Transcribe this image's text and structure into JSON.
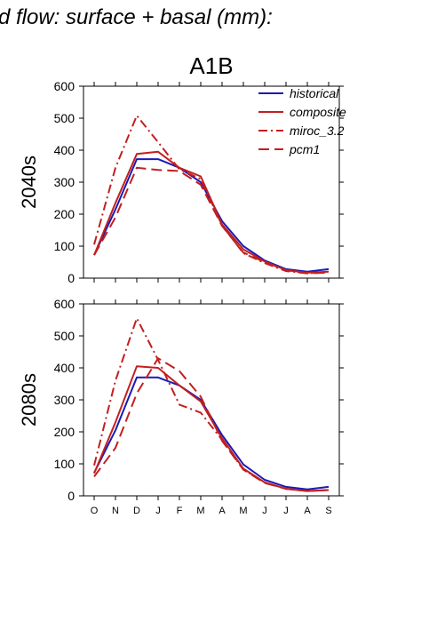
{
  "title": "d flow: surface + basal (mm):",
  "panel_title": "A1B",
  "colors": {
    "historical": "#1a1ab8",
    "composite": "#c21f1f",
    "miroc_3.2": "#c21f1f",
    "pcm1": "#c21f1f"
  },
  "chart_data": [
    {
      "type": "line",
      "row_label": "2040s",
      "categories": [
        "O",
        "N",
        "D",
        "J",
        "F",
        "M",
        "A",
        "M",
        "J",
        "J",
        "A",
        "S"
      ],
      "ylim": [
        0,
        600
      ],
      "yticks": [
        0,
        100,
        200,
        300,
        400,
        500,
        600
      ],
      "legend": "top-right",
      "series": [
        {
          "name": "historical",
          "style": "solid",
          "values": [
            72,
            215,
            372,
            372,
            345,
            300,
            178,
            100,
            55,
            28,
            20,
            28
          ]
        },
        {
          "name": "composite",
          "style": "solid",
          "values": [
            72,
            235,
            388,
            395,
            345,
            318,
            168,
            90,
            52,
            25,
            17,
            20
          ]
        },
        {
          "name": "miroc_3.2",
          "style": "dashdot",
          "values": [
            105,
            345,
            508,
            425,
            340,
            310,
            165,
            78,
            47,
            22,
            15,
            18
          ]
        },
        {
          "name": "pcm1",
          "style": "longdash",
          "values": [
            72,
            190,
            345,
            338,
            335,
            292,
            163,
            80,
            50,
            25,
            15,
            17
          ]
        }
      ]
    },
    {
      "type": "line",
      "row_label": "2080s",
      "categories": [
        "O",
        "N",
        "D",
        "J",
        "F",
        "M",
        "A",
        "M",
        "J",
        "J",
        "A",
        "S"
      ],
      "ylim": [
        0,
        600
      ],
      "yticks": [
        0,
        100,
        200,
        300,
        400,
        500,
        600
      ],
      "series": [
        {
          "name": "historical",
          "style": "solid",
          "values": [
            72,
            205,
            370,
            370,
            345,
            300,
            190,
            98,
            50,
            28,
            20,
            28
          ]
        },
        {
          "name": "composite",
          "style": "solid",
          "values": [
            70,
            230,
            405,
            400,
            345,
            295,
            180,
            85,
            42,
            22,
            15,
            18
          ]
        },
        {
          "name": "miroc_3.2",
          "style": "dashdot",
          "values": [
            95,
            360,
            555,
            425,
            285,
            260,
            175,
            82,
            42,
            22,
            15,
            18
          ]
        },
        {
          "name": "pcm1",
          "style": "longdash",
          "values": [
            60,
            150,
            320,
            430,
            390,
            310,
            172,
            82,
            40,
            22,
            15,
            18
          ]
        }
      ]
    }
  ]
}
